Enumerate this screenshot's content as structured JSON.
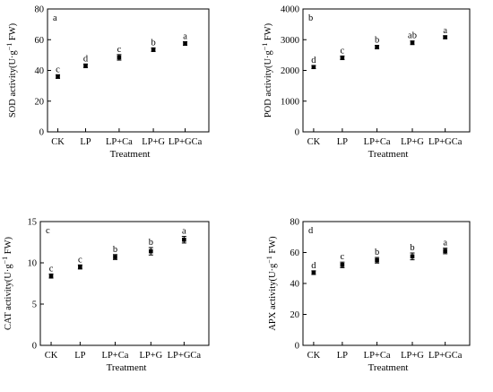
{
  "chart_data": [
    {
      "type": "scatter",
      "panel_letter": "a",
      "ylabel_main": "SOD activity(U·g",
      "ylabel_sup": "−1",
      "ylabel_end": " FW)",
      "xlabel": "Treatment",
      "categories": [
        "CK",
        "LP",
        "LP+Ca",
        "LP+G",
        "LP+GCa"
      ],
      "values": [
        36,
        43,
        48.5,
        53.5,
        57.5
      ],
      "errors": [
        1.2,
        1.2,
        1.8,
        1.2,
        1.2
      ],
      "significance": [
        "c",
        "d",
        "c",
        "b",
        "a"
      ],
      "ylim": [
        0,
        80
      ],
      "yticks": [
        "0",
        "20",
        "40",
        "60",
        "80"
      ],
      "ytick_values": [
        0,
        20,
        40,
        60,
        80
      ]
    },
    {
      "type": "scatter",
      "panel_letter": "b",
      "ylabel_main": "POD activity(U·g",
      "ylabel_sup": "−1",
      "ylabel_end": " FW)",
      "xlabel": "Treatment",
      "categories": [
        "CK",
        "LP",
        "LP+Ca",
        "LP+G",
        "LP+GCa"
      ],
      "values": [
        2110,
        2410,
        2760,
        2900,
        3080
      ],
      "errors": [
        50,
        60,
        55,
        60,
        45
      ],
      "significance": [
        "d",
        "c",
        "b",
        "ab",
        "a"
      ],
      "ylim": [
        0,
        4000
      ],
      "yticks": [
        "0",
        "1000",
        "2000",
        "3000",
        "4000"
      ],
      "ytick_values": [
        0,
        1000,
        2000,
        3000,
        4000
      ]
    },
    {
      "type": "scatter",
      "panel_letter": "c",
      "ylabel_main": "CAT activity(U·g",
      "ylabel_sup": "−1",
      "ylabel_end": " FW)",
      "xlabel": "Treatment",
      "categories": [
        "CK",
        "LP",
        "LP+Ca",
        "LP+G",
        "LP+GCa"
      ],
      "values": [
        8.4,
        9.5,
        10.7,
        11.4,
        12.8
      ],
      "errors": [
        0.25,
        0.25,
        0.3,
        0.45,
        0.4
      ],
      "significance": [
        "c",
        "c",
        "b",
        "b",
        "a"
      ],
      "ylim": [
        0,
        15
      ],
      "yticks": [
        "0",
        "5",
        "10",
        "15"
      ],
      "ytick_values": [
        0,
        5,
        10,
        15
      ]
    },
    {
      "type": "scatter",
      "panel_letter": "d",
      "ylabel_main": "APX activity(U·g",
      "ylabel_sup": "−1",
      "ylabel_end": " FW)",
      "xlabel": "Treatment",
      "categories": [
        "CK",
        "LP",
        "LP+Ca",
        "LP+G",
        "LP+GCa"
      ],
      "values": [
        47,
        52,
        55,
        57.5,
        61
      ],
      "errors": [
        1.2,
        1.8,
        1.8,
        2.2,
        1.8
      ],
      "significance": [
        "d",
        "c",
        "b",
        "b",
        "a"
      ],
      "ylim": [
        0,
        80
      ],
      "yticks": [
        "0",
        "20",
        "40",
        "60",
        "80"
      ],
      "ytick_values": [
        0,
        20,
        40,
        60,
        80
      ]
    }
  ]
}
